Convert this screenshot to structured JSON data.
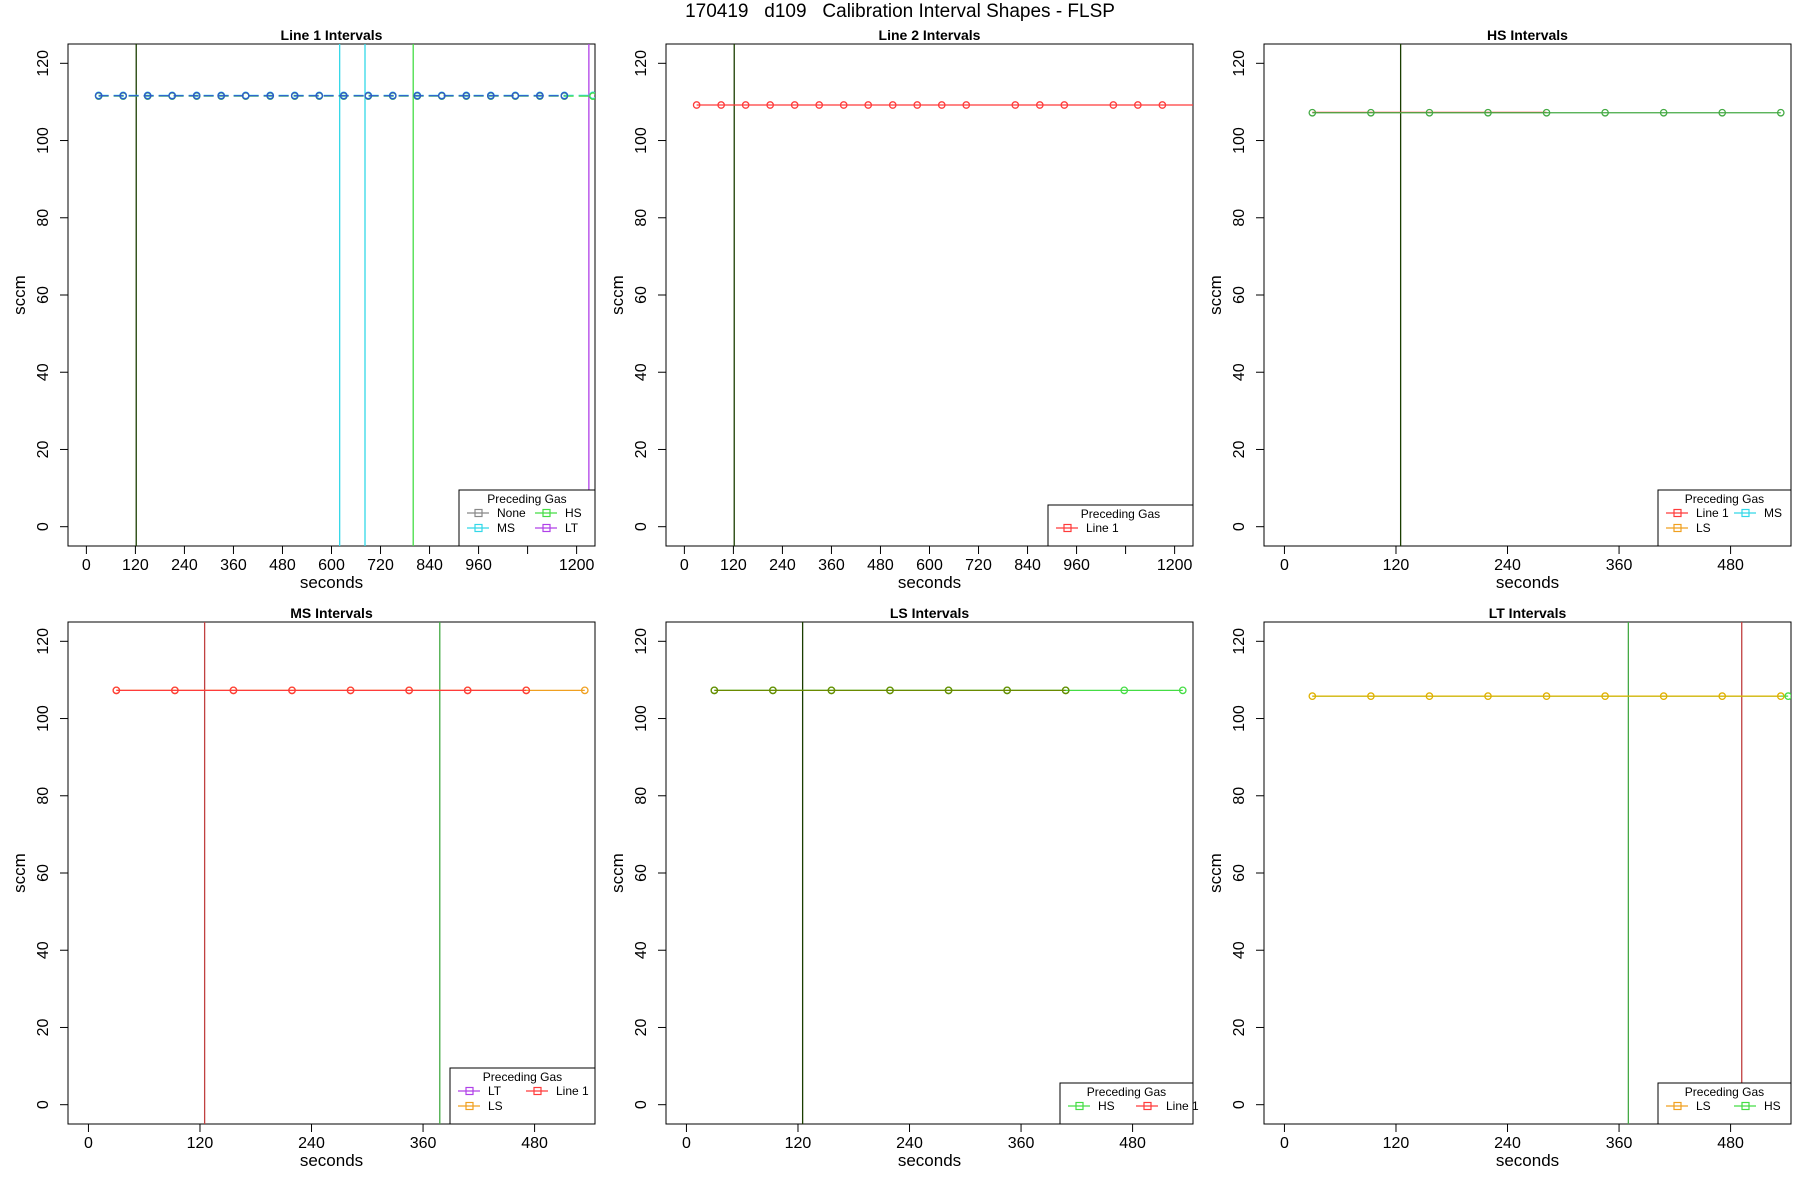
{
  "title": "170419   d109   Calibration Interval Shapes - FLSP",
  "colors": {
    "None": "#888888",
    "Line 1": "#ff3b3b",
    "MS": "#33d8e8",
    "HS": "#44dd44",
    "LT": "#b040e8",
    "LS": "#f0a020",
    "dark_green": "#1a3d00"
  },
  "chart_data": [
    {
      "type": "line",
      "title": "Line 1 Intervals",
      "xlabel": "seconds",
      "ylabel": "sccm",
      "xlim": [
        -45,
        1245
      ],
      "ylim": [
        -5,
        125
      ],
      "xticks": [
        0,
        120,
        240,
        360,
        480,
        600,
        720,
        840,
        960,
        1080,
        1200
      ],
      "xtick_labels": [
        "0",
        "120",
        "240",
        "360",
        "480",
        "600",
        "720",
        "840",
        "960",
        "",
        "1200"
      ],
      "yticks": [
        0,
        20,
        40,
        60,
        80,
        100,
        120
      ],
      "vlines": [
        {
          "x": 122,
          "color": "#1a3d00"
        },
        {
          "x": 620,
          "color": "#33d8e8"
        },
        {
          "x": 682,
          "color": "#33d8e8"
        },
        {
          "x": 800,
          "color": "#44dd44"
        },
        {
          "x": 1230,
          "color": "#b040e8"
        }
      ],
      "series": [
        {
          "color": "#33d8e8",
          "x": [
            30,
            90,
            150,
            210,
            270,
            330,
            390,
            450,
            510,
            570,
            630,
            690,
            750,
            810,
            870,
            930,
            990,
            1050,
            1110,
            1170,
            1240
          ],
          "values": [
            111.7,
            111.7,
            111.7,
            111.7,
            111.7,
            111.7,
            111.7,
            111.7,
            111.7,
            111.7,
            111.7,
            111.7,
            111.7,
            111.7,
            111.7,
            111.7,
            111.7,
            111.7,
            111.7,
            111.7,
            111.7
          ],
          "dash": true
        },
        {
          "color": "#44dd44",
          "x": [
            30,
            90,
            150,
            210,
            270,
            330,
            390,
            450,
            510,
            570,
            630,
            690,
            750,
            810,
            870,
            930,
            990,
            1050,
            1110,
            1170,
            1240
          ],
          "values": [
            111.5,
            111.5,
            111.5,
            111.5,
            111.5,
            111.5,
            111.5,
            111.5,
            111.5,
            111.5,
            111.5,
            111.5,
            111.5,
            111.5,
            111.5,
            111.5,
            111.5,
            111.5,
            111.5,
            111.5,
            111.5
          ],
          "dash": true
        },
        {
          "color": "#3355cc",
          "x": [
            30,
            90,
            150,
            210,
            270,
            330,
            390,
            450,
            510,
            570,
            630,
            690,
            750,
            810,
            870,
            930,
            990,
            1050,
            1110,
            1170
          ],
          "values": [
            111.6,
            111.6,
            111.6,
            111.6,
            111.6,
            111.6,
            111.6,
            111.6,
            111.6,
            111.6,
            111.6,
            111.6,
            111.6,
            111.6,
            111.6,
            111.6,
            111.6,
            111.6,
            111.6,
            111.6
          ],
          "dash": true
        }
      ],
      "legend": {
        "title": "Preceding Gas",
        "position": "bottom-right",
        "columns": 2,
        "entries": [
          {
            "label": "None",
            "color": "#888888"
          },
          {
            "label": "HS",
            "color": "#44dd44"
          },
          {
            "label": "MS",
            "color": "#33d8e8"
          },
          {
            "label": "LT",
            "color": "#b040e8"
          }
        ]
      }
    },
    {
      "type": "line",
      "title": "Line 2 Intervals",
      "xlabel": "seconds",
      "ylabel": "sccm",
      "xlim": [
        -45,
        1245
      ],
      "ylim": [
        -5,
        125
      ],
      "xticks": [
        0,
        120,
        240,
        360,
        480,
        600,
        720,
        840,
        960,
        1080,
        1200
      ],
      "xtick_labels": [
        "0",
        "120",
        "240",
        "360",
        "480",
        "600",
        "720",
        "840",
        "960",
        "",
        "1200"
      ],
      "yticks": [
        0,
        20,
        40,
        60,
        80,
        100,
        120
      ],
      "vlines": [
        {
          "x": 122,
          "color": "#1a3d00"
        }
      ],
      "series": [
        {
          "color": "#ff3b3b",
          "x": [
            30,
            90,
            150,
            210,
            270,
            330,
            390,
            450,
            510,
            570,
            630,
            690,
            810,
            870,
            930,
            1050,
            1110,
            1170,
            1245
          ],
          "markers": [
            true,
            true,
            true,
            true,
            true,
            true,
            true,
            true,
            true,
            true,
            true,
            true,
            true,
            true,
            true,
            true,
            true,
            true,
            false
          ],
          "values": [
            109.2,
            109.2,
            109.2,
            109.2,
            109.2,
            109.2,
            109.2,
            109.2,
            109.2,
            109.2,
            109.2,
            109.2,
            109.2,
            109.2,
            109.2,
            109.2,
            109.2,
            109.2,
            109.2
          ]
        }
      ],
      "legend": {
        "title": "Preceding Gas",
        "position": "bottom-right",
        "columns": 1,
        "entries": [
          {
            "label": "Line 1",
            "color": "#ff3b3b"
          }
        ]
      }
    },
    {
      "type": "line",
      "title": "HS Intervals",
      "xlabel": "seconds",
      "ylabel": "sccm",
      "xlim": [
        -22,
        545
      ],
      "ylim": [
        -5,
        125
      ],
      "xticks": [
        0,
        120,
        240,
        360,
        480
      ],
      "xtick_labels": [
        "0",
        "120",
        "240",
        "360",
        "480"
      ],
      "yticks": [
        0,
        20,
        40,
        60,
        80,
        100,
        120
      ],
      "vlines": [
        {
          "x": 125,
          "color": "#1a3d00"
        }
      ],
      "series": [
        {
          "color": "#ff3b3b",
          "x": [
            30,
            93,
            156,
            219,
            282
          ],
          "values": [
            107.3,
            107.3,
            107.3,
            107.3,
            107.3
          ],
          "markers": [
            false,
            false,
            false,
            false,
            false
          ]
        },
        {
          "color": "#44aa44",
          "x": [
            30,
            93,
            156,
            219,
            282,
            345,
            408,
            471,
            534
          ],
          "values": [
            107.2,
            107.2,
            107.2,
            107.2,
            107.2,
            107.2,
            107.2,
            107.2,
            107.2
          ]
        }
      ],
      "legend": {
        "title": "Preceding Gas",
        "position": "bottom-right",
        "columns": 2,
        "entries": [
          {
            "label": "Line 1",
            "color": "#ff3b3b"
          },
          {
            "label": "MS",
            "color": "#33d8e8"
          },
          {
            "label": "LS",
            "color": "#f0a020"
          }
        ]
      }
    },
    {
      "type": "line",
      "title": "MS Intervals",
      "xlabel": "seconds",
      "ylabel": "sccm",
      "xlim": [
        -22,
        545
      ],
      "ylim": [
        -5,
        125
      ],
      "xticks": [
        0,
        120,
        240,
        360,
        480
      ],
      "xtick_labels": [
        "0",
        "120",
        "240",
        "360",
        "480"
      ],
      "yticks": [
        0,
        20,
        40,
        60,
        80,
        100,
        120
      ],
      "vlines": [
        {
          "x": 125,
          "color": "#c04040"
        },
        {
          "x": 378,
          "color": "#44aa44"
        }
      ],
      "series": [
        {
          "color": "#f0a020",
          "x": [
            30,
            93,
            156,
            219,
            282,
            345,
            408,
            471,
            534
          ],
          "values": [
            107.3,
            107.3,
            107.3,
            107.3,
            107.3,
            107.3,
            107.3,
            107.3,
            107.3
          ]
        },
        {
          "color": "#ff3b3b",
          "x": [
            30,
            93,
            156,
            219,
            282,
            345,
            408,
            471
          ],
          "values": [
            107.3,
            107.3,
            107.3,
            107.3,
            107.3,
            107.3,
            107.3,
            107.3
          ]
        }
      ],
      "legend": {
        "title": "Preceding Gas",
        "position": "bottom-right",
        "columns": 2,
        "entries": [
          {
            "label": "LT",
            "color": "#b040e8"
          },
          {
            "label": "Line 1",
            "color": "#ff3b3b"
          },
          {
            "label": "LS",
            "color": "#f0a020"
          }
        ]
      }
    },
    {
      "type": "line",
      "title": "LS Intervals",
      "xlabel": "seconds",
      "ylabel": "sccm",
      "xlim": [
        -22,
        545
      ],
      "ylim": [
        -5,
        125
      ],
      "xticks": [
        0,
        120,
        240,
        360,
        480
      ],
      "xtick_labels": [
        "0",
        "120",
        "240",
        "360",
        "480"
      ],
      "yticks": [
        0,
        20,
        40,
        60,
        80,
        100,
        120
      ],
      "vlines": [
        {
          "x": 125,
          "color": "#1a3d00"
        }
      ],
      "series": [
        {
          "color": "#44dd44",
          "x": [
            30,
            93,
            156,
            219,
            282,
            345,
            408,
            471,
            534
          ],
          "values": [
            107.3,
            107.3,
            107.3,
            107.3,
            107.3,
            107.3,
            107.3,
            107.3,
            107.3
          ]
        },
        {
          "color": "#6a8a00",
          "x": [
            30,
            93,
            156,
            219,
            282,
            345,
            408
          ],
          "values": [
            107.3,
            107.3,
            107.3,
            107.3,
            107.3,
            107.3,
            107.3
          ]
        }
      ],
      "legend": {
        "title": "Preceding Gas",
        "position": "bottom-right",
        "columns": 2,
        "entries": [
          {
            "label": "HS",
            "color": "#44dd44"
          },
          {
            "label": "Line 1",
            "color": "#ff3b3b"
          }
        ]
      }
    },
    {
      "type": "line",
      "title": "LT Intervals",
      "xlabel": "seconds",
      "ylabel": "sccm",
      "xlim": [
        -22,
        545
      ],
      "ylim": [
        -5,
        125
      ],
      "xticks": [
        0,
        120,
        240,
        360,
        480
      ],
      "xtick_labels": [
        "0",
        "120",
        "240",
        "360",
        "480"
      ],
      "yticks": [
        0,
        20,
        40,
        60,
        80,
        100,
        120
      ],
      "vlines": [
        {
          "x": 370,
          "color": "#44aa44"
        },
        {
          "x": 492,
          "color": "#c04040"
        }
      ],
      "series": [
        {
          "color": "#44dd44",
          "x": [
            30,
            93,
            156,
            219,
            282,
            345,
            408,
            471,
            534,
            542
          ],
          "values": [
            105.8,
            105.8,
            105.8,
            105.8,
            105.8,
            105.8,
            105.8,
            105.8,
            105.8,
            105.8
          ],
          "markers": [
            false,
            false,
            false,
            false,
            false,
            false,
            false,
            false,
            false,
            true
          ]
        },
        {
          "color": "#e0b000",
          "x": [
            30,
            93,
            156,
            219,
            282,
            345,
            408,
            471,
            534
          ],
          "values": [
            105.8,
            105.8,
            105.8,
            105.8,
            105.8,
            105.8,
            105.8,
            105.8,
            105.8
          ]
        }
      ],
      "legend": {
        "title": "Preceding Gas",
        "position": "bottom-right",
        "columns": 2,
        "entries": [
          {
            "label": "LS",
            "color": "#f0a020"
          },
          {
            "label": "HS",
            "color": "#44dd44"
          }
        ]
      }
    }
  ]
}
